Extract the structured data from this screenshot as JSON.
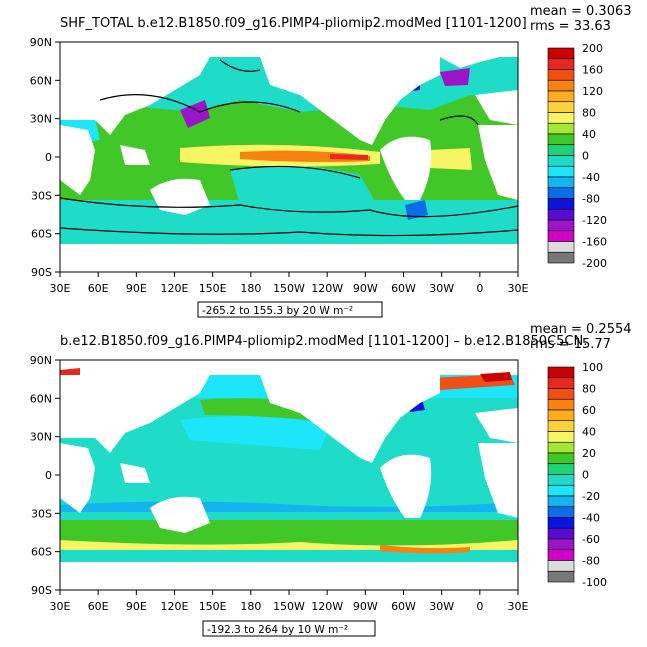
{
  "chart_data": [
    {
      "type": "heatmap",
      "title": "SHF_TOTAL  b.e12.B1850.f09_g16.PIMP4-pliomip2.modMed  [1101-1200]",
      "stat_mean": "mean = 0.3063",
      "stat_rms": "rms = 33.63",
      "contour_info": "-265.2 to 155.3 by 20  W m⁻²",
      "xticks": [
        "30E",
        "60E",
        "90E",
        "120E",
        "150E",
        "180",
        "150W",
        "120W",
        "90W",
        "60W",
        "30W",
        "0",
        "30E"
      ],
      "yticks": [
        "90N",
        "60N",
        "30N",
        "0",
        "30S",
        "60S",
        "90S"
      ],
      "colorbar": {
        "labels": [
          "200",
          "160",
          "120",
          "80",
          "40",
          "0",
          "-40",
          "-80",
          "-120",
          "-160",
          "-200"
        ],
        "colors": [
          "#c80000",
          "#e8281e",
          "#f05014",
          "#f8820f",
          "#fcae1e",
          "#fcd23c",
          "#f8f564",
          "#a4e632",
          "#41c828",
          "#1ed278",
          "#1edcc8",
          "#1ee6fa",
          "#14b4f0",
          "#0a6ee6",
          "#0a14dc",
          "#5a0ad2",
          "#9b14c8",
          "#d200c8",
          "#dcdcdc",
          "#787878"
        ]
      },
      "zero_contour": true
    },
    {
      "type": "heatmap",
      "title": "b.e12.B1850.f09_g16.PIMP4-pliomip2.modMed  [1101-1200] – b.e12.B1850C5CN.",
      "stat_mean": "mean = 0.2554",
      "stat_rms": "rms = 15.77",
      "contour_info": "-192.3 to 264 by 10  W m⁻²",
      "xticks": [
        "30E",
        "60E",
        "90E",
        "120E",
        "150E",
        "180",
        "150W",
        "120W",
        "90W",
        "60W",
        "30W",
        "0",
        "30E"
      ],
      "yticks": [
        "90N",
        "60N",
        "30N",
        "0",
        "30S",
        "60S",
        "90S"
      ],
      "colorbar": {
        "labels": [
          "100",
          "80",
          "60",
          "40",
          "20",
          "0",
          "-20",
          "-40",
          "-60",
          "-80",
          "-100"
        ],
        "colors": [
          "#c80000",
          "#e8281e",
          "#f05014",
          "#f8820f",
          "#fcae1e",
          "#fcd23c",
          "#f8f564",
          "#a4e632",
          "#41c828",
          "#1ed278",
          "#1edcc8",
          "#1ee6fa",
          "#14b4f0",
          "#0a6ee6",
          "#0a14dc",
          "#5a0ad2",
          "#9b14c8",
          "#d200c8",
          "#dcdcdc",
          "#787878"
        ]
      },
      "zero_contour": false
    }
  ]
}
